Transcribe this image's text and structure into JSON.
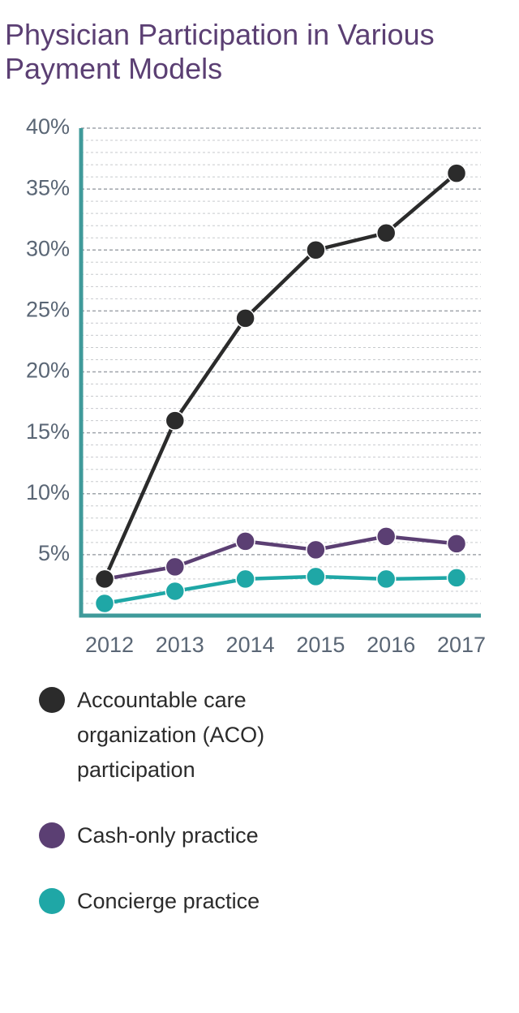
{
  "title": "Physician Participation in Various Payment Models",
  "chart_data": {
    "type": "line",
    "title": "Physician Participation in Various Payment Models",
    "x": [
      "2012",
      "2013",
      "2014",
      "2015",
      "2016",
      "2017"
    ],
    "y_ticks": [
      "5%",
      "10%",
      "15%",
      "20%",
      "25%",
      "30%",
      "35%",
      "40%"
    ],
    "ylim": [
      0,
      40
    ],
    "grid": true,
    "legend_position": "bottom",
    "series": [
      {
        "name": "Accountable care organization (ACO) participation",
        "color": "#2b2b2b",
        "values": [
          3.0,
          16.0,
          24.4,
          30.0,
          31.4,
          36.3
        ]
      },
      {
        "name": "Cash-only practice",
        "color": "#5b3f73",
        "values": [
          3.0,
          4.0,
          6.1,
          5.4,
          6.5,
          5.9
        ]
      },
      {
        "name": "Concierge practice",
        "color": "#1fa7a6",
        "values": [
          1.0,
          2.0,
          3.0,
          3.2,
          3.0,
          3.1
        ]
      }
    ]
  },
  "colors": {
    "title": "#5b3f73",
    "axis": "#3f9a9a",
    "tick_label": "#5a6675",
    "grid": "#9aa0a6"
  }
}
